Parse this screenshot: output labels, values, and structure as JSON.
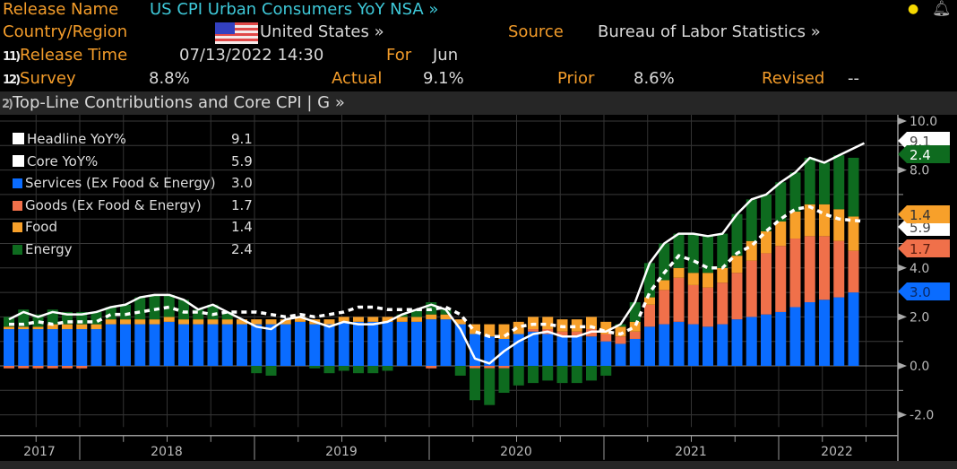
{
  "header": {
    "release_name_label": "Release Name",
    "release_name": "US CPI Urban Consumers YoY NSA »",
    "country_label": "Country/Region",
    "country": "United States »",
    "source_label": "Source",
    "source": "Bureau of Labor Statistics »",
    "release_time_num": "11)",
    "release_time_label": "Release Time",
    "release_time": "07/13/2022 14:30",
    "for_label": "For",
    "for_value": "Jun",
    "survey_num": "12)",
    "survey_label": "Survey",
    "survey": "8.8%",
    "actual_label": "Actual",
    "actual": "9.1%",
    "prior_label": "Prior",
    "prior": "8.6%",
    "revised_label": "Revised",
    "revised": "--"
  },
  "section": {
    "num": "2)",
    "title": "Top-Line Contributions and Core CPI | G »"
  },
  "icons": [
    "lightbulb-icon",
    "bell-icon",
    "us-flag-icon"
  ],
  "chart_data": {
    "type": "bar",
    "stacked": true,
    "title": "Top-Line Contributions and Core CPI",
    "x_start": "2017-08",
    "x_end": "2022-06",
    "frequency": "monthly",
    "xticks": [
      "2017",
      "2018",
      "2019",
      "2020",
      "2021",
      "2022"
    ],
    "yticks": [
      "10.0",
      "8.0",
      "4.0",
      "2.0",
      "0.0",
      "-2.0"
    ],
    "ylim": [
      -2.5,
      10
    ],
    "grid": true,
    "legend_position": "top-left",
    "colors": {
      "headline": "#ffffff",
      "core": "#ffffff",
      "services": "#0a6cff",
      "goods": "#f0704a",
      "food": "#f7a02a",
      "energy": "#0e6b1f"
    },
    "legend": [
      {
        "key": "headline",
        "name": "Headline YoY%",
        "last": "9.1"
      },
      {
        "key": "core",
        "name": "Core YoY%",
        "last": "5.9"
      },
      {
        "key": "services",
        "name": "Services (Ex Food & Energy)",
        "last": "3.0"
      },
      {
        "key": "goods",
        "name": "Goods (Ex Food & Energy)",
        "last": "1.7"
      },
      {
        "key": "food",
        "name": "Food",
        "last": "1.4"
      },
      {
        "key": "energy",
        "name": "Energy",
        "last": "2.4"
      }
    ],
    "series": [
      {
        "key": "headline",
        "type": "line",
        "values": [
          1.9,
          2.2,
          2.0,
          2.2,
          2.1,
          2.1,
          2.2,
          2.4,
          2.5,
          2.8,
          2.9,
          2.9,
          2.7,
          2.3,
          2.5,
          2.2,
          1.9,
          1.6,
          1.5,
          1.9,
          2.0,
          1.8,
          1.6,
          1.8,
          1.7,
          1.7,
          1.8,
          2.1,
          2.3,
          2.5,
          2.3,
          1.5,
          0.3,
          0.1,
          0.6,
          1.0,
          1.3,
          1.4,
          1.2,
          1.2,
          1.4,
          1.4,
          1.7,
          2.6,
          4.2,
          5.0,
          5.4,
          5.4,
          5.3,
          5.4,
          6.2,
          6.8,
          7.0,
          7.5,
          7.9,
          8.5,
          8.3,
          8.6,
          9.1
        ]
      },
      {
        "key": "core",
        "type": "dashed-line",
        "values": [
          1.7,
          1.7,
          1.8,
          1.7,
          1.8,
          1.8,
          1.8,
          2.1,
          2.1,
          2.2,
          2.3,
          2.4,
          2.2,
          2.2,
          2.1,
          2.2,
          2.2,
          2.2,
          2.1,
          2.0,
          2.1,
          2.0,
          2.1,
          2.2,
          2.4,
          2.4,
          2.3,
          2.3,
          2.3,
          2.3,
          2.4,
          2.1,
          1.4,
          1.2,
          1.2,
          1.6,
          1.7,
          1.7,
          1.6,
          1.6,
          1.6,
          1.4,
          1.3,
          1.6,
          3.0,
          3.8,
          4.5,
          4.3,
          4.0,
          4.0,
          4.6,
          4.9,
          5.5,
          6.0,
          6.4,
          6.5,
          6.2,
          6.0,
          5.9
        ]
      },
      {
        "key": "services",
        "type": "bar",
        "values": [
          1.5,
          1.5,
          1.5,
          1.5,
          1.5,
          1.5,
          1.5,
          1.7,
          1.7,
          1.7,
          1.7,
          1.8,
          1.7,
          1.7,
          1.7,
          1.7,
          1.7,
          1.7,
          1.7,
          1.7,
          1.8,
          1.7,
          1.7,
          1.8,
          1.8,
          1.8,
          1.8,
          1.8,
          1.8,
          1.9,
          1.9,
          1.7,
          1.3,
          1.2,
          1.1,
          1.3,
          1.4,
          1.3,
          1.2,
          1.2,
          1.2,
          1.0,
          0.9,
          1.1,
          1.6,
          1.7,
          1.8,
          1.7,
          1.6,
          1.7,
          1.9,
          2.0,
          2.1,
          2.2,
          2.4,
          2.6,
          2.7,
          2.8,
          3.0
        ]
      },
      {
        "key": "goods",
        "type": "bar",
        "values": [
          -0.1,
          -0.1,
          -0.1,
          -0.1,
          -0.1,
          -0.1,
          0,
          0,
          0,
          0,
          0,
          0,
          0,
          0,
          0,
          0,
          0,
          0,
          0,
          0,
          0,
          0,
          0,
          0,
          0,
          0,
          0,
          0,
          0,
          -0.1,
          0,
          0,
          -0.1,
          -0.1,
          -0.1,
          0,
          0.1,
          0.2,
          0.2,
          0.2,
          0.3,
          0.3,
          0.3,
          0.3,
          0.9,
          1.4,
          1.8,
          1.6,
          1.6,
          1.7,
          1.9,
          2.3,
          2.5,
          2.7,
          2.8,
          2.7,
          2.6,
          2.3,
          1.7
        ]
      },
      {
        "key": "food",
        "type": "bar",
        "values": [
          0.1,
          0.1,
          0.1,
          0.2,
          0.2,
          0.2,
          0.2,
          0.2,
          0.2,
          0.2,
          0.2,
          0.2,
          0.2,
          0.2,
          0.2,
          0.2,
          0.2,
          0.2,
          0.2,
          0.2,
          0.2,
          0.2,
          0.2,
          0.2,
          0.2,
          0.2,
          0.2,
          0.2,
          0.2,
          0.2,
          0.2,
          0.2,
          0.4,
          0.5,
          0.6,
          0.5,
          0.5,
          0.5,
          0.5,
          0.5,
          0.5,
          0.5,
          0.4,
          0.4,
          0.3,
          0.4,
          0.4,
          0.5,
          0.6,
          0.6,
          0.7,
          0.8,
          0.9,
          1.0,
          1.1,
          1.3,
          1.3,
          1.3,
          1.4
        ]
      },
      {
        "key": "energy",
        "type": "bar",
        "values": [
          0.4,
          0.7,
          0.5,
          0.6,
          0.5,
          0.5,
          0.5,
          0.5,
          0.6,
          0.9,
          1.0,
          0.9,
          0.8,
          0.4,
          0.6,
          0.3,
          0.0,
          -0.3,
          -0.4,
          0.0,
          0.0,
          -0.1,
          -0.3,
          -0.2,
          -0.3,
          -0.3,
          -0.2,
          0.1,
          0.3,
          0.5,
          0.2,
          -0.4,
          -1.3,
          -1.5,
          -1.0,
          -0.8,
          -0.7,
          -0.6,
          -0.7,
          -0.7,
          -0.6,
          -0.4,
          0.1,
          0.8,
          1.4,
          1.5,
          1.4,
          1.6,
          1.5,
          1.4,
          1.7,
          1.7,
          1.5,
          1.6,
          1.6,
          1.9,
          1.7,
          2.2,
          2.4
        ]
      }
    ],
    "value_tags": [
      {
        "key": "headline",
        "label": "9.1"
      },
      {
        "key": "energy",
        "label": "2.4"
      },
      {
        "key": "core",
        "label": "5.9"
      },
      {
        "key": "food",
        "label": "1.4"
      },
      {
        "key": "goods",
        "label": "1.7"
      },
      {
        "key": "services",
        "label": "3.0"
      }
    ]
  }
}
